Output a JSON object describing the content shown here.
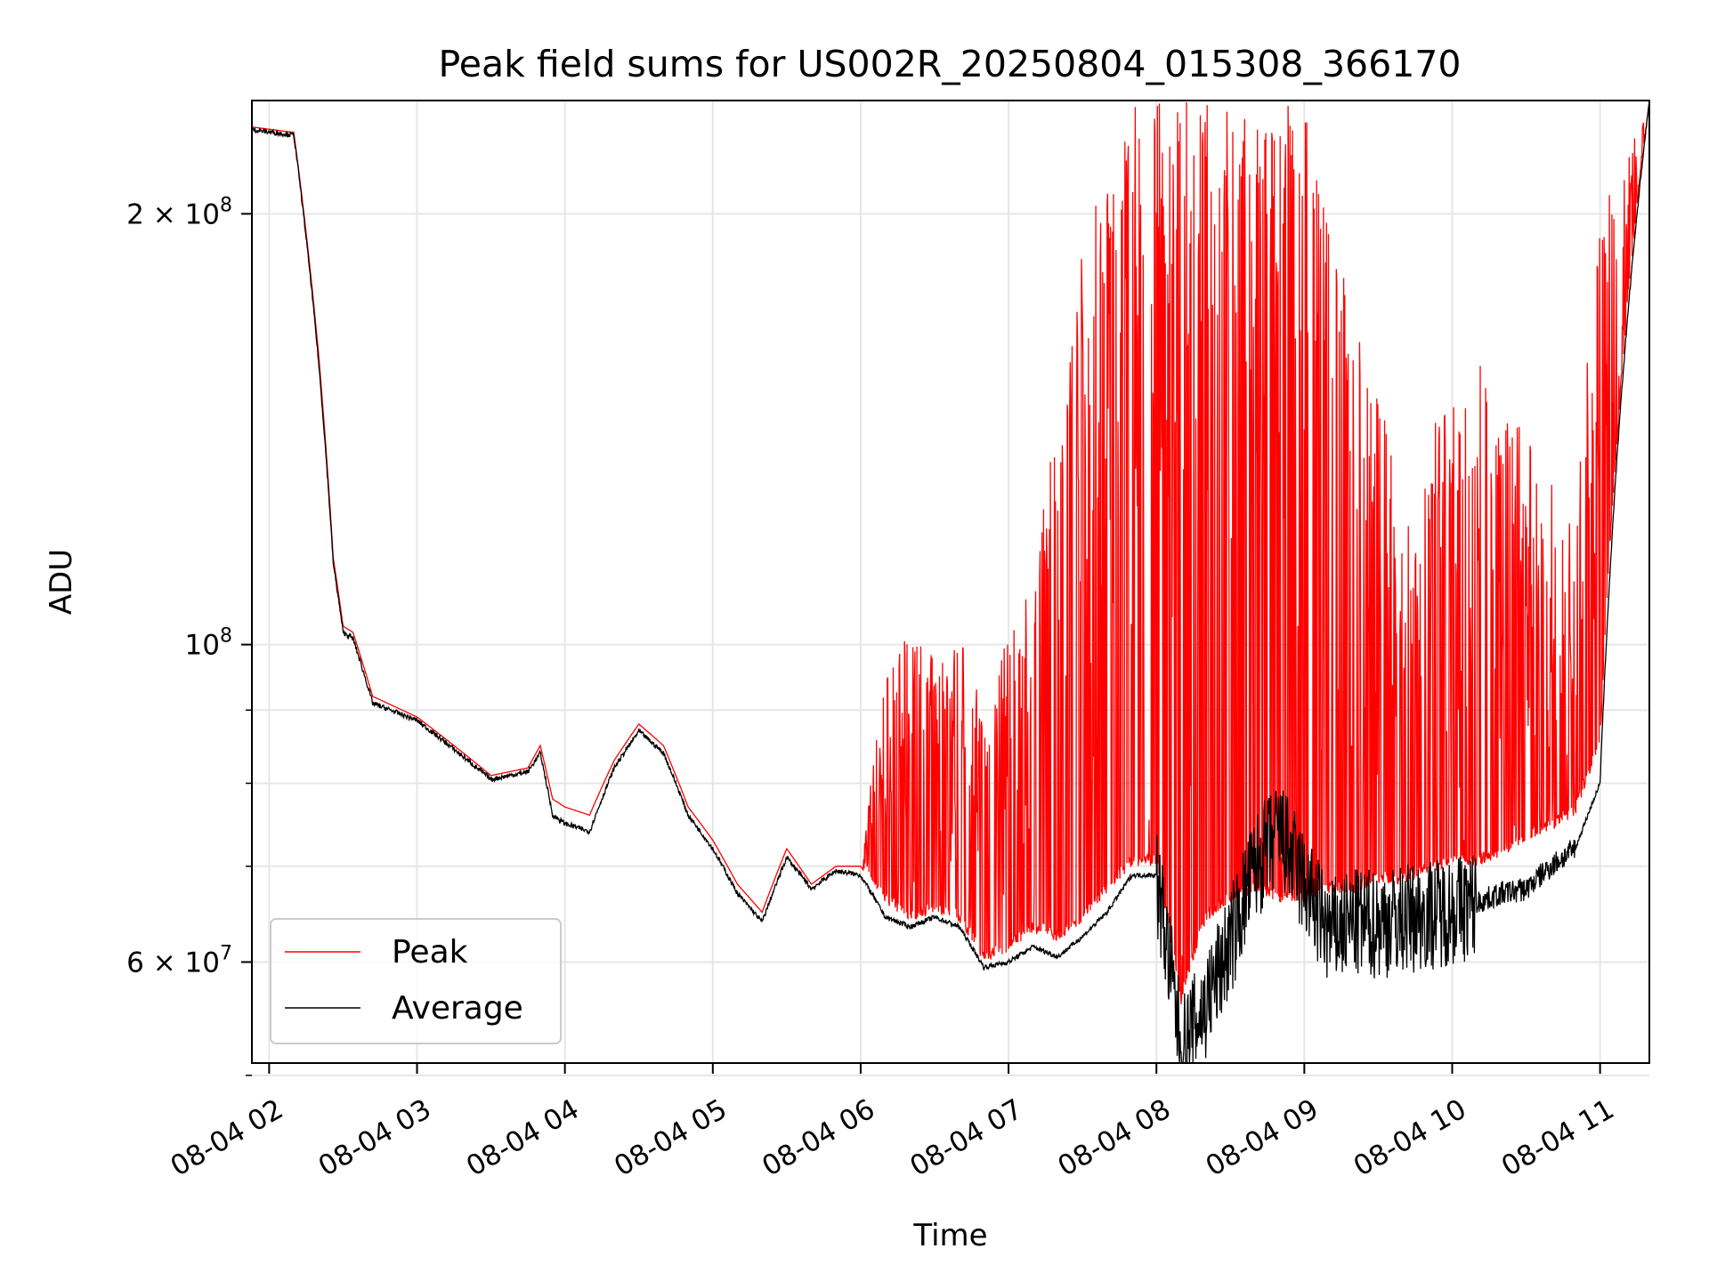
{
  "chart_data": {
    "type": "line",
    "title": "Peak field sums for US002R_20250804_015308_366170",
    "xlabel": "Time",
    "ylabel": "ADU",
    "yscale": "log",
    "xlim": [
      "08-04 01:53",
      "08-04 11:20"
    ],
    "ylim": [
      51000000,
      240000000
    ],
    "grid": true,
    "legend_location": "lower-left",
    "x_tick_labels": [
      "08-04 02",
      "08-04 03",
      "08-04 04",
      "08-04 05",
      "08-04 06",
      "08-04 07",
      "08-04 08",
      "08-04 09",
      "08-04 10",
      "08-04 11"
    ],
    "y_tick_labels": [
      {
        "value": 200000000,
        "label": "2 × 10^8",
        "base": "2 × 10",
        "exp": "8"
      },
      {
        "value": 100000000,
        "label": "10^8",
        "base": "10",
        "exp": "8"
      },
      {
        "value": 60000000,
        "label": "6 × 10^7",
        "base": "6 × 10",
        "exp": "7"
      }
    ],
    "y_minor_ticks": [
      50000000,
      70000000,
      80000000,
      90000000
    ],
    "series": [
      {
        "name": "Peak",
        "color": "#ff0000",
        "x": [
          "01:53",
          "02:10",
          "02:20",
          "02:26",
          "02:30",
          "02:34",
          "02:42",
          "03:00",
          "03:15",
          "03:30",
          "03:45",
          "03:50",
          "03:55",
          "04:00",
          "04:10",
          "04:20",
          "04:30",
          "04:40",
          "04:50",
          "05:00",
          "05:10",
          "05:20",
          "05:30",
          "05:40",
          "05:50",
          "06:00",
          "06:10",
          "06:20",
          "06:30",
          "06:40",
          "06:50",
          "07:00",
          "07:10",
          "07:20",
          "07:30",
          "07:40",
          "07:50",
          "08:00",
          "08:10",
          "08:20",
          "08:30",
          "08:40",
          "08:50",
          "09:00",
          "09:10",
          "09:20",
          "09:30",
          "09:40",
          "09:50",
          "10:00",
          "10:10",
          "10:20",
          "10:30",
          "10:40",
          "10:50",
          "11:00",
          "11:20"
        ],
        "y_low": [
          230000000,
          228000000,
          160000000,
          115000000,
          103000000,
          102000000,
          92000000,
          89000000,
          85000000,
          81000000,
          82000000,
          85000000,
          78000000,
          77000000,
          76000000,
          83000000,
          88000000,
          85000000,
          77000000,
          73000000,
          68000000,
          65000000,
          72000000,
          68000000,
          70000000,
          70000000,
          66000000,
          64000000,
          65000000,
          64000000,
          60000000,
          61000000,
          63000000,
          62000000,
          64000000,
          67000000,
          70000000,
          70000000,
          56000000,
          64000000,
          66000000,
          67000000,
          66000000,
          66000000,
          67000000,
          67000000,
          68000000,
          68000000,
          69000000,
          70000000,
          70000000,
          71000000,
          73000000,
          74000000,
          76000000,
          85000000,
          240000000
        ],
        "y_high": [
          230000000,
          228000000,
          160000000,
          115000000,
          103000000,
          102000000,
          92000000,
          89000000,
          85000000,
          81000000,
          82000000,
          85000000,
          78000000,
          77000000,
          76000000,
          83000000,
          88000000,
          85000000,
          77000000,
          73000000,
          68000000,
          65000000,
          72000000,
          68000000,
          70000000,
          70000000,
          96000000,
          102000000,
          98000000,
          102000000,
          90000000,
          102000000,
          110000000,
          150000000,
          190000000,
          220000000,
          240000000,
          240000000,
          240000000,
          240000000,
          240000000,
          230000000,
          240000000,
          240000000,
          200000000,
          170000000,
          150000000,
          130000000,
          140000000,
          150000000,
          160000000,
          150000000,
          140000000,
          130000000,
          120000000,
          200000000,
          240000000
        ]
      },
      {
        "name": "Average",
        "color": "#000000",
        "x": [
          "01:53",
          "02:10",
          "02:20",
          "02:26",
          "02:30",
          "02:34",
          "02:42",
          "03:00",
          "03:15",
          "03:30",
          "03:45",
          "03:50",
          "03:55",
          "04:00",
          "04:10",
          "04:20",
          "04:30",
          "04:40",
          "04:50",
          "05:00",
          "05:10",
          "05:20",
          "05:30",
          "05:40",
          "05:50",
          "06:00",
          "06:10",
          "06:20",
          "06:30",
          "06:40",
          "06:50",
          "07:00",
          "07:10",
          "07:20",
          "07:30",
          "07:40",
          "07:50",
          "08:00",
          "08:10",
          "08:20",
          "08:30",
          "08:40",
          "08:50",
          "09:00",
          "09:10",
          "09:20",
          "09:30",
          "09:40",
          "09:50",
          "10:00",
          "10:10",
          "10:20",
          "10:30",
          "10:40",
          "10:50",
          "11:00",
          "11:20"
        ],
        "y": [
          229000000,
          227000000,
          158000000,
          114000000,
          102000000,
          101000000,
          91000000,
          88500000,
          84500000,
          80500000,
          81500000,
          84000000,
          76000000,
          75000000,
          74000000,
          82000000,
          87000000,
          84000000,
          76000000,
          72000000,
          67000000,
          64000000,
          71000000,
          67500000,
          69500000,
          69000000,
          64500000,
          63500000,
          64500000,
          63500000,
          59500000,
          60000000,
          61500000,
          60500000,
          62500000,
          65000000,
          69000000,
          69000000,
          52000000,
          56000000,
          62000000,
          70000000,
          74000000,
          68000000,
          63000000,
          64000000,
          64000000,
          64500000,
          65000000,
          65500000,
          66000000,
          67000000,
          67500000,
          70000000,
          72000000,
          80000000,
          240000000
        ]
      }
    ]
  }
}
